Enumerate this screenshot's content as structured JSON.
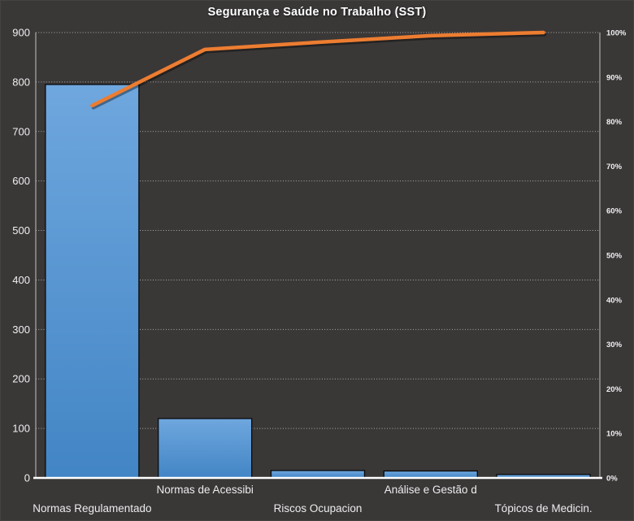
{
  "chart_data": {
    "type": "pareto",
    "title": "Segurança e Saúde no Trabalho (SST)",
    "categories": [
      "Normas Regulamentado",
      "Normas de Acessibi",
      "Riscos Ocupacion",
      "Análise e Gestão d",
      "Tópicos de Medicin."
    ],
    "bar_values": [
      795,
      120,
      15,
      14,
      7
    ],
    "cumulative_line_pct": [
      83.6,
      96.2,
      97.8,
      99.3,
      100
    ],
    "left_axis": {
      "min": 0,
      "max": 900,
      "step": 100,
      "tick_labels": [
        "0",
        "100",
        "200",
        "300",
        "400",
        "500",
        "600",
        "700",
        "800",
        "900"
      ]
    },
    "right_axis": {
      "min": 0,
      "max": 100,
      "step": 10,
      "tick_labels": [
        "0%",
        "10%",
        "20%",
        "30%",
        "40%",
        "50%",
        "60%",
        "70%",
        "80%",
        "90%",
        "100%"
      ]
    },
    "grid": "horizontal-dotted",
    "legend": "none",
    "colors": {
      "background": "#3A3737",
      "bar_gradient_top": "#6FA7DE",
      "bar_gradient_bottom": "#4285C5",
      "bar_border": "#0A0A0A",
      "line": "#ED7D31",
      "gridline": "#C9C9C9",
      "axis_line": "#D9D9D9",
      "baseline": "#FFFFFF",
      "text": "#F0F0F0"
    }
  }
}
